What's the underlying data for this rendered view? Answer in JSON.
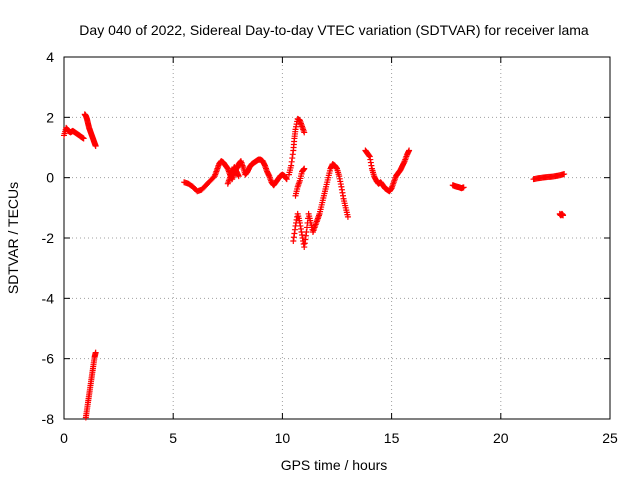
{
  "chart_data": {
    "type": "scatter",
    "title": "Day 040 of 2022, Sidereal Day-to-day VTEC variation (SDTVAR) for receiver lama",
    "xlabel": "GPS time / hours",
    "ylabel": "SDTVAR / TECUs",
    "xlim": [
      0,
      25
    ],
    "ylim": [
      -8,
      4
    ],
    "x_ticks": [
      0,
      5,
      10,
      15,
      20,
      25
    ],
    "y_ticks": [
      -8,
      -6,
      -4,
      -2,
      0,
      2,
      4
    ],
    "grid": true,
    "marker": "plus",
    "colors": {
      "series": "#ff0000",
      "grid": "#a0a0a0",
      "axis": "#000000"
    },
    "series": [
      {
        "segments": [
          [
            [
              0.0,
              1.4
            ],
            [
              0.1,
              1.65
            ],
            [
              0.2,
              1.55
            ],
            [
              0.3,
              1.5
            ],
            [
              0.4,
              1.55
            ],
            [
              0.5,
              1.5
            ],
            [
              0.6,
              1.45
            ],
            [
              0.7,
              1.4
            ],
            [
              0.8,
              1.35
            ],
            [
              0.9,
              1.3
            ]
          ],
          [
            [
              0.95,
              2.1
            ],
            [
              1.0,
              2.05
            ],
            [
              1.05,
              1.95
            ],
            [
              1.1,
              1.8
            ],
            [
              1.15,
              1.65
            ],
            [
              1.2,
              1.55
            ],
            [
              1.25,
              1.45
            ],
            [
              1.3,
              1.35
            ],
            [
              1.35,
              1.25
            ],
            [
              1.4,
              1.15
            ],
            [
              1.45,
              1.05
            ]
          ],
          [
            [
              1.0,
              -7.95
            ],
            [
              1.05,
              -7.7
            ],
            [
              1.1,
              -7.45
            ],
            [
              1.15,
              -7.2
            ],
            [
              1.2,
              -6.95
            ],
            [
              1.25,
              -6.7
            ],
            [
              1.3,
              -6.45
            ],
            [
              1.35,
              -6.2
            ],
            [
              1.4,
              -5.95
            ],
            [
              1.45,
              -5.8
            ]
          ],
          [
            [
              5.5,
              -0.15
            ],
            [
              5.7,
              -0.2
            ],
            [
              5.9,
              -0.3
            ],
            [
              6.1,
              -0.45
            ],
            [
              6.3,
              -0.4
            ],
            [
              6.5,
              -0.25
            ],
            [
              6.7,
              -0.1
            ],
            [
              6.9,
              0.05
            ],
            [
              7.0,
              0.25
            ],
            [
              7.1,
              0.45
            ],
            [
              7.2,
              0.55
            ],
            [
              7.3,
              0.5
            ],
            [
              7.4,
              0.4
            ],
            [
              7.5,
              0.3
            ],
            [
              7.6,
              0.1
            ],
            [
              7.7,
              -0.05
            ],
            [
              7.8,
              0.15
            ],
            [
              7.9,
              0.3
            ],
            [
              8.0,
              0.45
            ],
            [
              8.1,
              0.55
            ],
            [
              8.2,
              0.35
            ],
            [
              8.3,
              0.1
            ],
            [
              8.4,
              0.2
            ],
            [
              8.5,
              0.35
            ],
            [
              8.6,
              0.45
            ],
            [
              8.7,
              0.5
            ],
            [
              8.8,
              0.55
            ],
            [
              8.9,
              0.6
            ],
            [
              9.0,
              0.6
            ],
            [
              9.1,
              0.55
            ],
            [
              9.2,
              0.4
            ],
            [
              9.3,
              0.2
            ],
            [
              9.4,
              0.05
            ],
            [
              9.5,
              -0.15
            ],
            [
              9.6,
              -0.25
            ],
            [
              9.7,
              -0.15
            ],
            [
              9.8,
              -0.05
            ],
            [
              9.9,
              0.05
            ],
            [
              10.0,
              0.1
            ],
            [
              10.1,
              0.05
            ],
            [
              10.2,
              -0.05
            ]
          ],
          [
            [
              7.5,
              -0.2
            ],
            [
              7.6,
              0.0
            ],
            [
              7.7,
              0.2
            ],
            [
              7.8,
              0.35
            ],
            [
              7.9,
              0.2
            ],
            [
              8.0,
              0.05
            ]
          ],
          [
            [
              10.3,
              0.1
            ],
            [
              10.4,
              0.4
            ],
            [
              10.5,
              0.9
            ],
            [
              10.55,
              1.3
            ],
            [
              10.6,
              1.6
            ],
            [
              10.7,
              1.95
            ],
            [
              10.8,
              1.9
            ],
            [
              10.9,
              1.7
            ],
            [
              11.0,
              1.5
            ]
          ],
          [
            [
              10.5,
              -2.1
            ],
            [
              10.6,
              -1.6
            ],
            [
              10.7,
              -1.2
            ],
            [
              10.8,
              -1.5
            ],
            [
              10.9,
              -1.9
            ],
            [
              11.0,
              -2.3
            ],
            [
              11.1,
              -1.8
            ],
            [
              11.2,
              -1.2
            ],
            [
              11.3,
              -1.5
            ],
            [
              11.4,
              -1.8
            ],
            [
              11.5,
              -1.6
            ],
            [
              11.6,
              -1.4
            ],
            [
              11.7,
              -1.2
            ],
            [
              11.8,
              -0.9
            ],
            [
              11.9,
              -0.6
            ],
            [
              12.0,
              -0.3
            ],
            [
              12.1,
              0.0
            ],
            [
              12.2,
              0.3
            ],
            [
              12.3,
              0.45
            ],
            [
              12.4,
              0.4
            ],
            [
              12.5,
              0.3
            ],
            [
              12.6,
              0.05
            ],
            [
              12.7,
              -0.3
            ],
            [
              12.8,
              -0.7
            ],
            [
              12.9,
              -1.0
            ],
            [
              13.0,
              -1.3
            ]
          ],
          [
            [
              10.6,
              -0.6
            ],
            [
              10.7,
              -0.3
            ],
            [
              10.8,
              -0.1
            ],
            [
              10.9,
              0.2
            ],
            [
              11.0,
              0.3
            ]
          ],
          [
            [
              13.8,
              0.9
            ],
            [
              13.9,
              0.8
            ],
            [
              14.0,
              0.7
            ],
            [
              14.1,
              0.3
            ],
            [
              14.2,
              0.05
            ],
            [
              14.3,
              -0.1
            ],
            [
              14.4,
              -0.2
            ],
            [
              14.5,
              -0.15
            ],
            [
              14.6,
              -0.25
            ],
            [
              14.7,
              -0.35
            ],
            [
              14.8,
              -0.4
            ],
            [
              14.9,
              -0.45
            ],
            [
              15.0,
              -0.35
            ],
            [
              15.1,
              -0.15
            ],
            [
              15.2,
              0.05
            ],
            [
              15.3,
              0.15
            ],
            [
              15.4,
              0.25
            ],
            [
              15.5,
              0.4
            ],
            [
              15.6,
              0.55
            ],
            [
              15.7,
              0.75
            ],
            [
              15.8,
              0.9
            ]
          ],
          [
            [
              17.8,
              -0.25
            ],
            [
              17.9,
              -0.28
            ],
            [
              18.0,
              -0.3
            ],
            [
              18.1,
              -0.32
            ],
            [
              18.2,
              -0.35
            ],
            [
              18.3,
              -0.32
            ]
          ],
          [
            [
              21.5,
              -0.05
            ],
            [
              21.7,
              -0.02
            ],
            [
              21.9,
              0.0
            ],
            [
              22.1,
              0.02
            ],
            [
              22.3,
              0.03
            ],
            [
              22.5,
              0.05
            ],
            [
              22.7,
              0.08
            ],
            [
              22.9,
              0.12
            ]
          ],
          [
            [
              22.7,
              -1.2
            ],
            [
              22.75,
              -1.25
            ],
            [
              22.8,
              -1.2
            ],
            [
              22.85,
              -1.25
            ]
          ]
        ]
      }
    ]
  }
}
